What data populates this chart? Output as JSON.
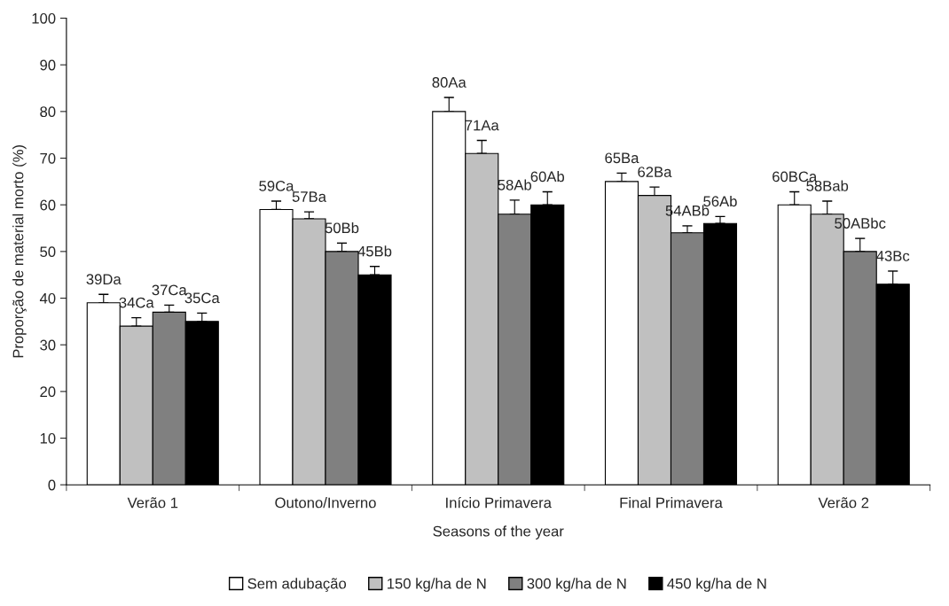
{
  "chart_data": {
    "type": "bar",
    "xlabel": "Seasons of the year",
    "ylabel": "Proporção de material morto (%)",
    "categories": [
      "Verão 1",
      "Outono/Inverno",
      "Início Primavera",
      "Final Primavera",
      "Verão 2"
    ],
    "series": [
      {
        "name": "Sem adubação",
        "color": "#ffffff",
        "values": [
          39,
          59,
          80,
          65,
          60
        ],
        "errors": [
          1.8,
          1.8,
          3,
          1.8,
          2.8
        ],
        "value_labels": [
          "39Da",
          "59Ca",
          "80Aa",
          "65Ba",
          "60BCa"
        ]
      },
      {
        "name": "150 kg/ha de N",
        "color": "#c0c0c0",
        "values": [
          34,
          57,
          71,
          62,
          58
        ],
        "errors": [
          1.8,
          1.5,
          2.8,
          1.8,
          2.8
        ],
        "value_labels": [
          "34Ca",
          "57Ba",
          "71Aa",
          "62Ba",
          "58Bab"
        ]
      },
      {
        "name": "300 kg/ha de N",
        "color": "#808080",
        "values": [
          37,
          50,
          58,
          54,
          50
        ],
        "errors": [
          1.5,
          1.8,
          3,
          1.5,
          2.8
        ],
        "value_labels": [
          "37Ca",
          "50Bb",
          "58Ab",
          "54ABb",
          "50ABbc"
        ]
      },
      {
        "name": "450 kg/ha de N",
        "color": "#000000",
        "values": [
          35,
          45,
          60,
          56,
          43
        ],
        "errors": [
          1.8,
          1.8,
          2.8,
          1.5,
          2.8
        ],
        "value_labels": [
          "35Ca",
          "45Bb",
          "60Ab",
          "56Ab",
          "43Bc"
        ]
      }
    ],
    "ylim": [
      0,
      100
    ],
    "yticks": [
      0,
      10,
      20,
      30,
      40,
      50,
      60,
      70,
      80,
      90,
      100
    ],
    "grid": false,
    "legend": "bottom"
  }
}
